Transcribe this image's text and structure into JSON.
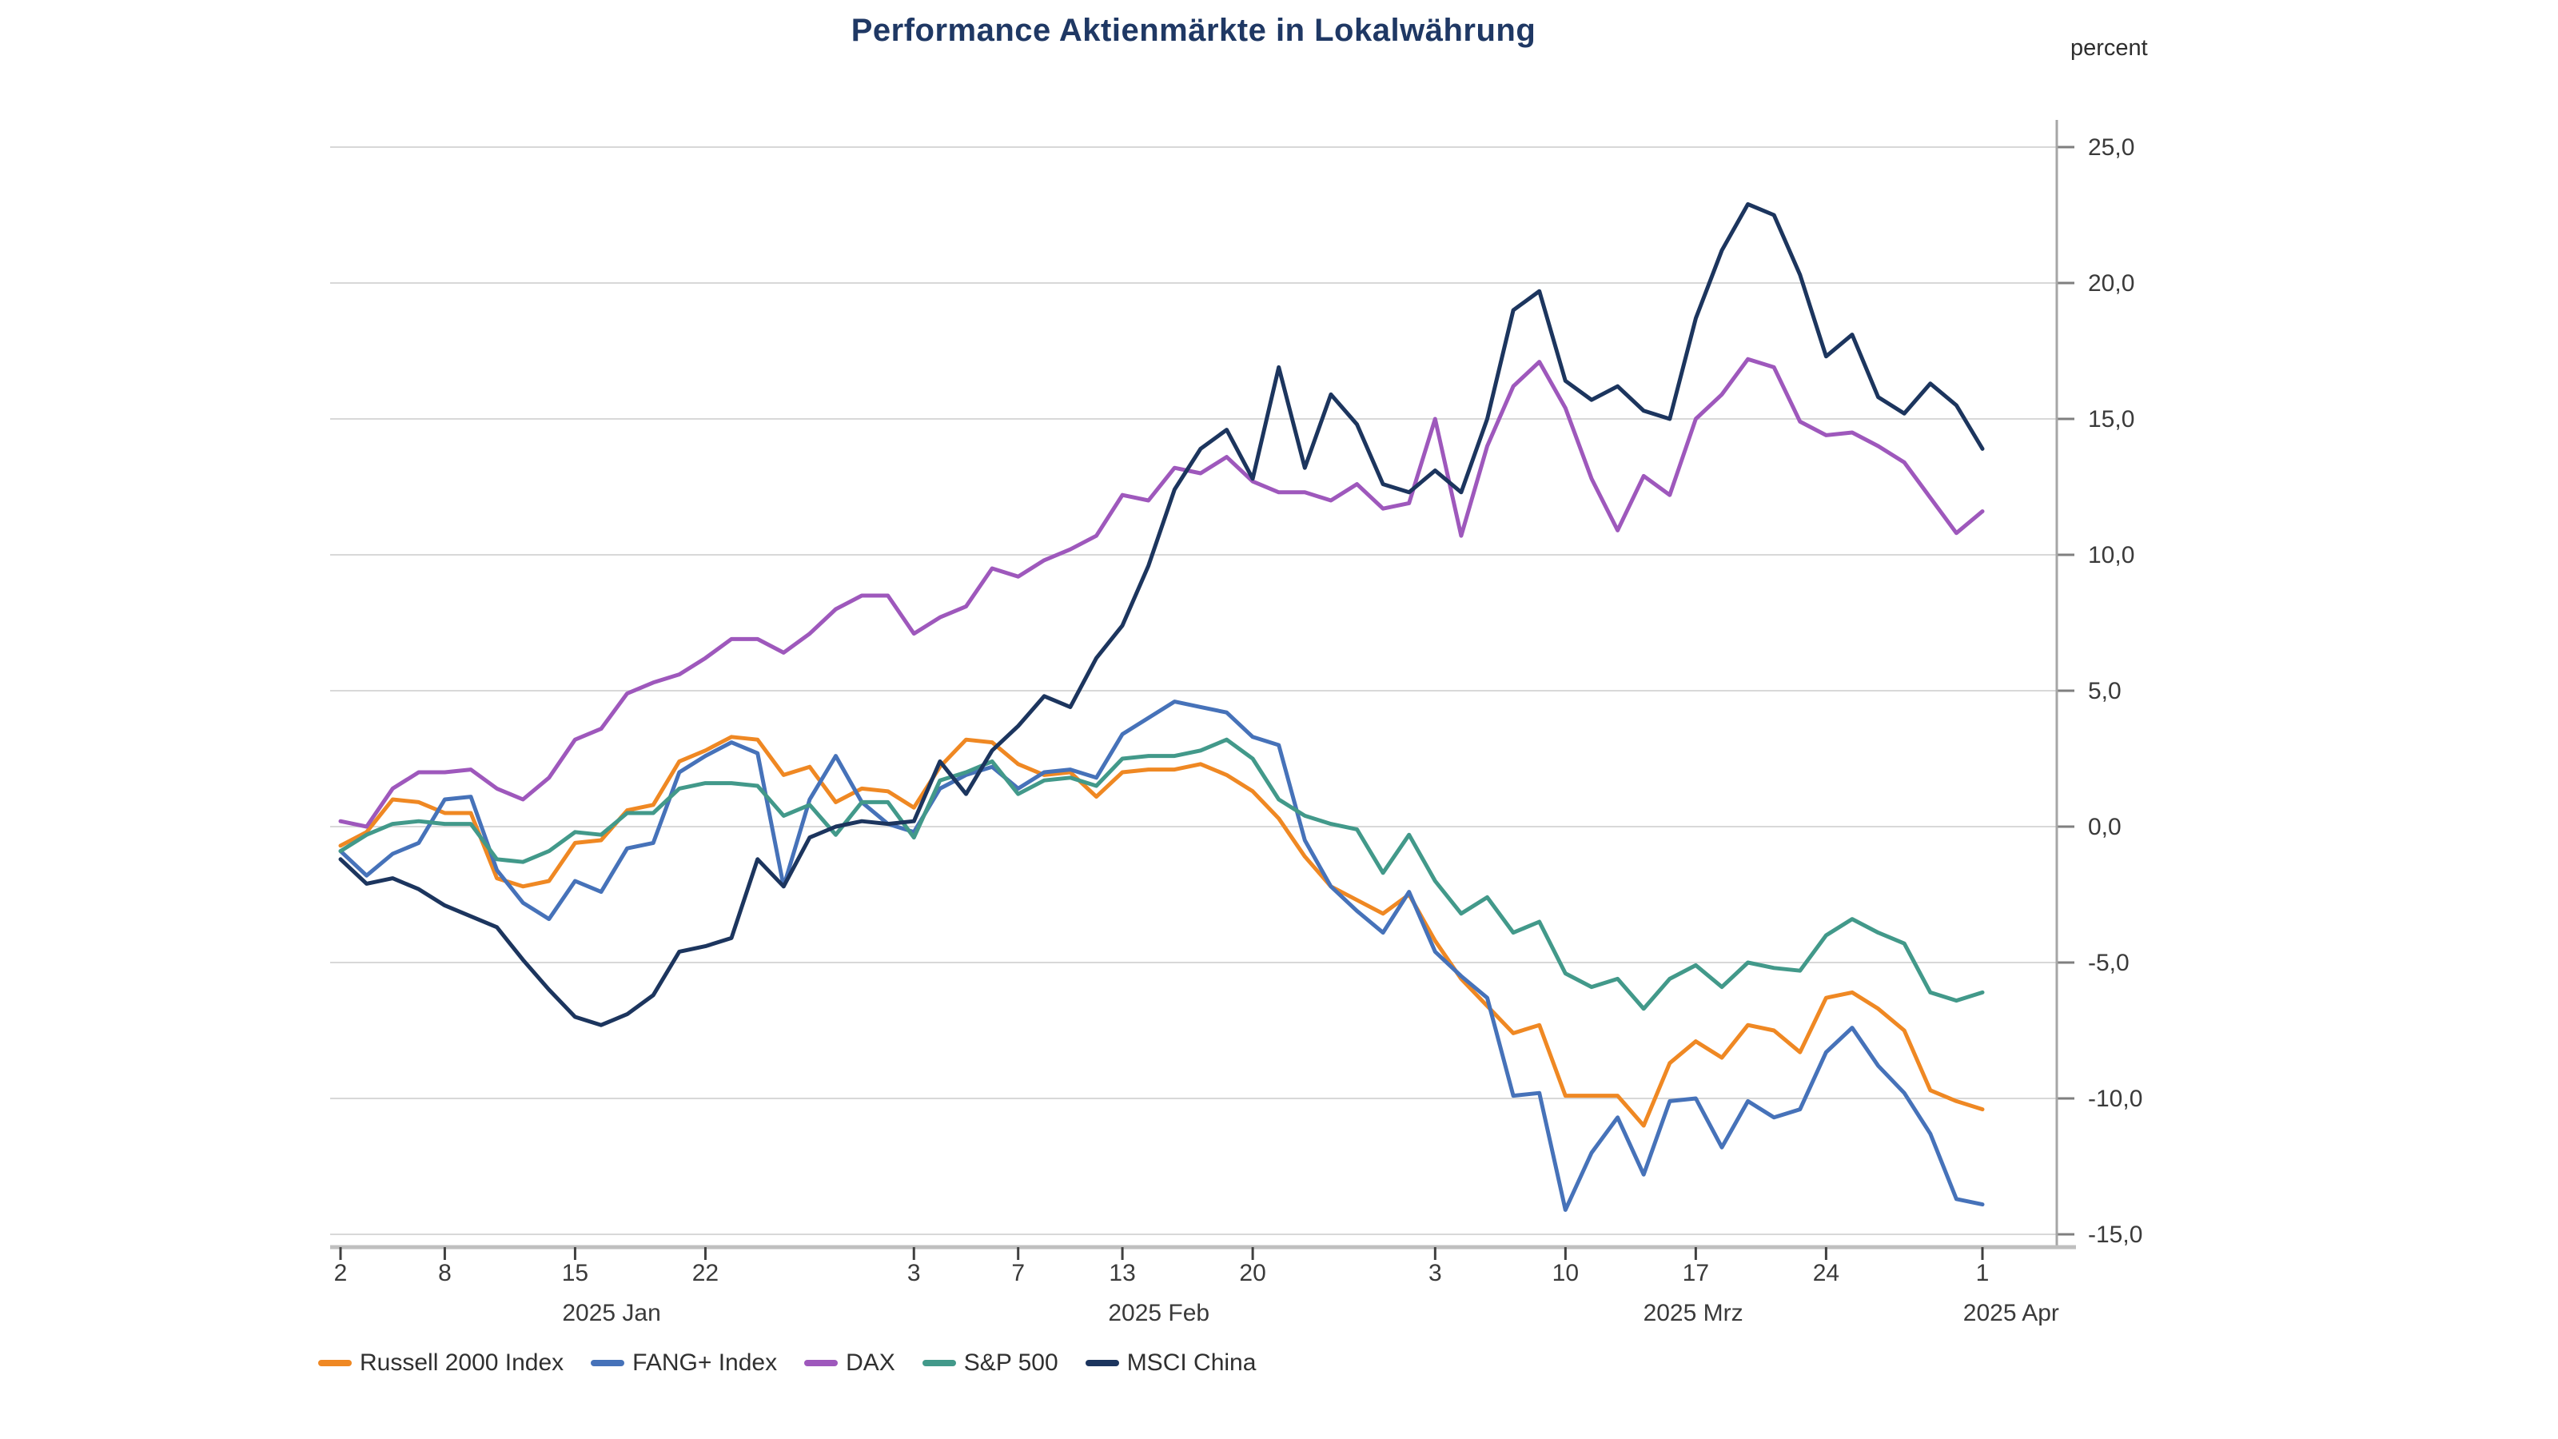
{
  "title": "Performance Aktienmärkte in Lokalwährung",
  "unit_label": "percent",
  "colors": {
    "title": "#1F3864",
    "gridline": "#D8D8D8",
    "axis_line": "#A6A6A6",
    "bottom_axis_line": "#BFBFBF",
    "tick_mark": "#404040",
    "tick_text": "#3a3a3a"
  },
  "chart_data": {
    "type": "line",
    "title": "Performance Aktienmärkte in Lokalwährung",
    "xlabel": "",
    "ylabel": "percent",
    "ylim": [
      -15,
      25
    ],
    "ytick_step": 5,
    "ytick_labels": [
      "25,0",
      "20,0",
      "15,0",
      "10,0",
      "5,0",
      "0,0",
      "-5,0",
      "-10,0",
      "-15,0"
    ],
    "grid": true,
    "legend_position": "bottom-left",
    "x": [
      "2.1.",
      "3.1.",
      "6.1.",
      "7.1.",
      "8.1.",
      "9.1.",
      "10.1.",
      "13.1.",
      "14.1.",
      "15.1.",
      "16.1.",
      "17.1.",
      "20.1.",
      "21.1.",
      "22.1.",
      "23.1.",
      "24.1.",
      "27.1.",
      "28.1.",
      "29.1.",
      "30.1.",
      "31.1.",
      "3.2.",
      "4.2.",
      "5.2.",
      "6.2.",
      "7.2.",
      "10.2.",
      "11.2.",
      "12.2.",
      "13.2.",
      "14.2.",
      "17.2.",
      "18.2.",
      "19.2.",
      "20.2.",
      "21.2.",
      "24.2.",
      "25.2.",
      "26.2.",
      "27.2.",
      "28.2.",
      "3.3.",
      "4.3.",
      "5.3.",
      "6.3.",
      "7.3.",
      "10.3.",
      "11.3.",
      "12.3.",
      "13.3.",
      "14.3.",
      "17.3.",
      "18.3.",
      "19.3.",
      "20.3.",
      "21.3.",
      "24.3.",
      "25.3.",
      "26.3.",
      "27.3.",
      "28.3.",
      "31.3.",
      "1.4."
    ],
    "xticks": [
      {
        "index": 0,
        "label": "2"
      },
      {
        "index": 4,
        "label": "8"
      },
      {
        "index": 9,
        "label": "15"
      },
      {
        "index": 14,
        "label": "22"
      },
      {
        "index": 22,
        "label": "3"
      },
      {
        "index": 26,
        "label": "7"
      },
      {
        "index": 30,
        "label": "13"
      },
      {
        "index": 35,
        "label": "20"
      },
      {
        "index": 42,
        "label": "3"
      },
      {
        "index": 47,
        "label": "10"
      },
      {
        "index": 52,
        "label": "17"
      },
      {
        "index": 57,
        "label": "24"
      },
      {
        "index": 63,
        "label": "1"
      }
    ],
    "month_labels": [
      {
        "label": "2025 Jan",
        "day": 10.4
      },
      {
        "label": "2025 Feb",
        "day": 31.4
      },
      {
        "label": "2025 Mrz",
        "day": 51.9
      },
      {
        "label": "2025 Apr",
        "day": 64.1
      }
    ],
    "series": [
      {
        "name": "Russell 2000 Index",
        "color": "#EF8823",
        "values": [
          -0.7,
          -0.2,
          1.0,
          0.9,
          0.5,
          0.5,
          -1.9,
          -2.2,
          -2.0,
          -0.6,
          -0.5,
          0.6,
          0.8,
          2.4,
          2.8,
          3.3,
          3.2,
          1.9,
          2.2,
          0.9,
          1.4,
          1.3,
          0.7,
          2.2,
          3.2,
          3.1,
          2.3,
          1.9,
          2.0,
          1.1,
          2.0,
          2.1,
          2.1,
          2.3,
          1.9,
          1.3,
          0.3,
          -1.1,
          -2.2,
          -2.7,
          -3.2,
          -2.5,
          -4.2,
          -5.6,
          -6.6,
          -7.6,
          -7.3,
          -9.9,
          -9.9,
          -9.9,
          -11.0,
          -8.7,
          -7.9,
          -8.5,
          -7.3,
          -7.5,
          -8.3,
          -6.3,
          -6.1,
          -6.7,
          -7.5,
          -9.7,
          -10.1,
          -10.4
        ]
      },
      {
        "name": "FANG+ Index",
        "color": "#4672B9",
        "values": [
          -0.9,
          -1.8,
          -1.0,
          -0.6,
          1.0,
          1.1,
          -1.6,
          -2.8,
          -3.4,
          -2.0,
          -2.4,
          -0.8,
          -0.6,
          2.0,
          2.6,
          3.1,
          2.7,
          -2.2,
          1.0,
          2.6,
          0.9,
          0.1,
          -0.2,
          1.4,
          1.9,
          2.2,
          1.4,
          2.0,
          2.1,
          1.8,
          3.4,
          4.0,
          4.6,
          4.4,
          4.2,
          3.3,
          3.0,
          -0.5,
          -2.2,
          -3.1,
          -3.9,
          -2.4,
          -4.6,
          -5.5,
          -6.3,
          -9.9,
          -9.8,
          -14.1,
          -12.0,
          -10.7,
          -12.8,
          -10.1,
          -10.0,
          -11.8,
          -10.1,
          -10.7,
          -10.4,
          -8.3,
          -7.4,
          -8.8,
          -9.8,
          -11.3,
          -13.7,
          -13.9
        ]
      },
      {
        "name": "DAX",
        "color": "#9E58BC",
        "values": [
          0.2,
          0.0,
          1.4,
          2.0,
          2.0,
          2.1,
          1.4,
          1.0,
          1.8,
          3.2,
          3.6,
          4.9,
          5.3,
          5.6,
          6.2,
          6.9,
          6.9,
          6.4,
          7.1,
          8.0,
          8.5,
          8.5,
          7.1,
          7.7,
          8.1,
          9.5,
          9.2,
          9.8,
          10.2,
          10.7,
          12.2,
          12.0,
          13.2,
          13.0,
          13.6,
          12.7,
          12.3,
          12.3,
          12.0,
          12.6,
          11.7,
          11.9,
          15.0,
          10.7,
          14.0,
          16.2,
          17.1,
          15.4,
          12.8,
          10.9,
          12.9,
          12.2,
          15.0,
          15.9,
          17.2,
          16.9,
          14.9,
          14.4,
          14.5,
          14.0,
          13.4,
          12.1,
          10.8,
          11.6
        ]
      },
      {
        "name": "S&P 500",
        "color": "#42998A",
        "values": [
          -0.9,
          -0.3,
          0.1,
          0.2,
          0.1,
          0.1,
          -1.2,
          -1.3,
          -0.9,
          -0.2,
          -0.3,
          0.5,
          0.5,
          1.4,
          1.6,
          1.6,
          1.5,
          0.4,
          0.8,
          -0.3,
          0.9,
          0.9,
          -0.4,
          1.7,
          2.0,
          2.4,
          1.2,
          1.7,
          1.8,
          1.5,
          2.5,
          2.6,
          2.6,
          2.8,
          3.2,
          2.5,
          1.0,
          0.4,
          0.1,
          -0.1,
          -1.7,
          -0.3,
          -2.0,
          -3.2,
          -2.6,
          -3.9,
          -3.5,
          -5.4,
          -5.9,
          -5.6,
          -6.7,
          -5.6,
          -5.1,
          -5.9,
          -5.0,
          -5.2,
          -5.3,
          -4.0,
          -3.4,
          -3.9,
          -4.3,
          -6.1,
          -6.4,
          -6.1
        ]
      },
      {
        "name": "MSCI China",
        "color": "#1C355E",
        "values": [
          -1.2,
          -2.1,
          -1.9,
          -2.3,
          -2.9,
          -3.3,
          -3.7,
          -4.9,
          -6.0,
          -7.0,
          -7.3,
          -6.9,
          -6.2,
          -4.6,
          -4.4,
          -4.1,
          -1.2,
          -2.2,
          -0.4,
          0.0,
          0.2,
          0.1,
          0.2,
          2.4,
          1.2,
          2.8,
          3.7,
          4.8,
          4.4,
          6.2,
          7.4,
          9.6,
          12.4,
          13.9,
          14.6,
          12.8,
          16.9,
          13.2,
          15.9,
          14.8,
          12.6,
          12.3,
          13.1,
          12.3,
          15.0,
          19.0,
          19.7,
          16.4,
          15.7,
          16.2,
          15.3,
          15.0,
          18.7,
          21.2,
          22.9,
          22.5,
          20.3,
          17.3,
          18.1,
          15.8,
          15.2,
          16.3,
          15.5,
          13.9
        ]
      }
    ]
  }
}
